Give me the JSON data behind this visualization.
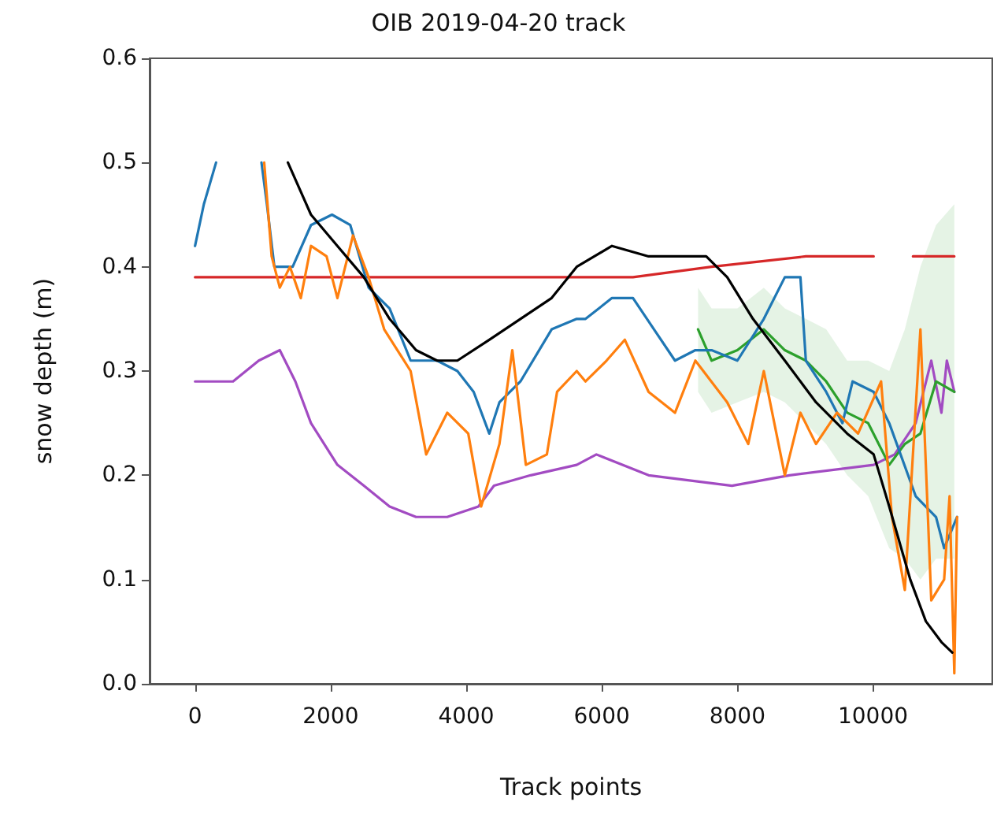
{
  "chart_data": {
    "type": "line",
    "title": "OIB 2019-04-20 track",
    "xlabel": "Track points",
    "ylabel": "snow depth (m)",
    "xlim": [
      -670,
      11760
    ],
    "xticks": [
      0,
      2000,
      4000,
      6000,
      8000,
      10000
    ],
    "ylim": [
      0,
      0.6
    ],
    "yticks": [
      {
        "value": 0,
        "label": "0.0"
      },
      0.1,
      0.2,
      0.3,
      0.4,
      0.5,
      0.6
    ],
    "grid": false,
    "marker": "none",
    "line_style": "solid",
    "series": [
      {
        "color": "#d62728",
        "x": [
          0,
          2490,
          4410,
          5630,
          6460,
          7620,
          9010,
          10010,
          10300,
          10590,
          11200
        ],
        "values": [
          0.39,
          0.39,
          0.39,
          0.39,
          0.39,
          0.4,
          0.41,
          0.41,
          null,
          0.41,
          0.41
        ]
      },
      {
        "color": "#a24bc2",
        "x": [
          0,
          560,
          940,
          1250,
          1480,
          1710,
          2100,
          2490,
          2870,
          3260,
          3720,
          4180,
          4410,
          4950,
          5630,
          5920,
          6690,
          7920,
          8770,
          10010,
          10320,
          10630,
          10860,
          11010,
          11090,
          11200
        ],
        "values": [
          0.29,
          0.29,
          0.31,
          0.32,
          0.29,
          0.25,
          0.21,
          0.19,
          0.17,
          0.16,
          0.16,
          0.17,
          0.19,
          0.2,
          0.21,
          0.22,
          0.2,
          0.19,
          0.2,
          0.21,
          0.22,
          0.25,
          0.31,
          0.26,
          0.31,
          0.28
        ]
      },
      {
        "color": "#2ca02c",
        "x": [
          7420,
          7620,
          8000,
          8390,
          8700,
          9010,
          9310,
          9620,
          9930,
          10240,
          10470,
          10700,
          10930,
          11200
        ],
        "values": [
          0.34,
          0.31,
          0.32,
          0.34,
          0.32,
          0.31,
          0.29,
          0.26,
          0.25,
          0.21,
          0.23,
          0.24,
          0.29,
          0.28
        ],
        "lower": [
          0.28,
          0.26,
          0.27,
          0.28,
          0.27,
          0.25,
          0.23,
          0.2,
          0.18,
          0.13,
          0.12,
          0.1,
          0.12,
          0.12
        ],
        "upper": [
          0.38,
          0.36,
          0.36,
          0.38,
          0.36,
          0.35,
          0.34,
          0.31,
          0.31,
          0.3,
          0.34,
          0.4,
          0.44,
          0.46
        ]
      },
      {
        "color": "#1f77b4",
        "x": [
          0,
          130,
          310,
          600,
          980,
          1060,
          1170,
          1440,
          1710,
          2020,
          2290,
          2560,
          2870,
          3180,
          3570,
          3870,
          4110,
          4340,
          4490,
          4800,
          5260,
          5630,
          5760,
          6150,
          6460,
          6770,
          7080,
          7380,
          7620,
          8000,
          8390,
          8700,
          8930,
          9010,
          9310,
          9550,
          9700,
          10010,
          10240,
          10630,
          10930,
          11050,
          11240
        ],
        "values": [
          0.42,
          0.46,
          0.5,
          null,
          0.5,
          0.46,
          0.4,
          0.4,
          0.44,
          0.45,
          0.44,
          0.38,
          0.36,
          0.31,
          0.31,
          0.3,
          0.28,
          0.24,
          0.27,
          0.29,
          0.34,
          0.35,
          0.35,
          0.37,
          0.37,
          0.34,
          0.31,
          0.32,
          0.32,
          0.31,
          0.35,
          0.39,
          0.39,
          0.31,
          0.28,
          0.25,
          0.29,
          0.28,
          0.25,
          0.18,
          0.16,
          0.13,
          0.16
        ]
      },
      {
        "color": "#ff7f0e",
        "x": [
          1020,
          1130,
          1250,
          1400,
          1560,
          1710,
          1940,
          2100,
          2330,
          2560,
          2790,
          3180,
          3410,
          3720,
          4030,
          4220,
          4490,
          4680,
          4880,
          5190,
          5340,
          5630,
          5760,
          6070,
          6340,
          6690,
          7080,
          7380,
          7850,
          8160,
          8390,
          8700,
          8930,
          9160,
          9470,
          9780,
          10120,
          10280,
          10470,
          10700,
          10860,
          11050,
          11130,
          11200,
          11240
        ],
        "values": [
          0.5,
          0.41,
          0.38,
          0.4,
          0.37,
          0.42,
          0.41,
          0.37,
          0.43,
          0.39,
          0.34,
          0.3,
          0.22,
          0.26,
          0.24,
          0.17,
          0.23,
          0.32,
          0.21,
          0.22,
          0.28,
          0.3,
          0.29,
          0.31,
          0.33,
          0.28,
          0.26,
          0.31,
          0.27,
          0.23,
          0.3,
          0.2,
          0.26,
          0.23,
          0.26,
          0.24,
          0.29,
          0.16,
          0.09,
          0.34,
          0.08,
          0.1,
          0.18,
          0.01,
          0.16
        ]
      },
      {
        "color": "#000000",
        "x": [
          1370,
          1710,
          2100,
          2490,
          2870,
          3260,
          3570,
          3870,
          4340,
          4800,
          5260,
          5630,
          6150,
          6690,
          7230,
          7540,
          7850,
          8230,
          8700,
          9160,
          9620,
          10010,
          10240,
          10550,
          10780,
          11010,
          11170
        ],
        "values": [
          0.5,
          0.45,
          0.42,
          0.39,
          0.35,
          0.32,
          0.31,
          0.31,
          0.33,
          0.35,
          0.37,
          0.4,
          0.42,
          0.41,
          0.41,
          0.41,
          0.39,
          0.35,
          0.31,
          0.27,
          0.24,
          0.22,
          0.17,
          0.1,
          0.06,
          0.04,
          0.03
        ]
      }
    ]
  }
}
